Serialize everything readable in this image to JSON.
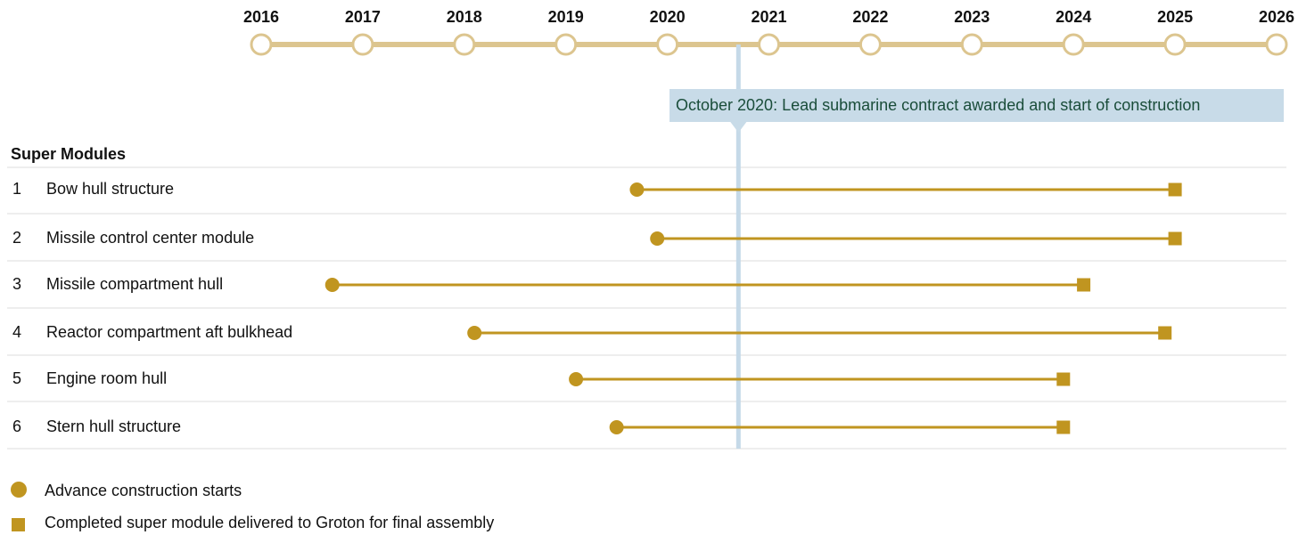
{
  "chart_data": {
    "type": "timeline",
    "xlim": [
      2016,
      2026
    ],
    "xticks": [
      2016,
      2017,
      2018,
      2019,
      2020,
      2021,
      2022,
      2023,
      2024,
      2025,
      2026
    ],
    "section_title": "Super Modules",
    "row_numbers": [
      "1",
      "2",
      "3",
      "4",
      "5",
      "6"
    ],
    "categories": [
      "Bow hull structure",
      "Missile control center module",
      "Missile compartment hull",
      "Reactor compartment aft bulkhead",
      "Engine room hull",
      "Stern hull structure"
    ],
    "series": [
      {
        "name": "Advance construction starts",
        "color": "#c09520",
        "marker": "circle",
        "values": [
          2019.7,
          2019.9,
          2016.7,
          2018.1,
          2019.1,
          2019.5
        ]
      },
      {
        "name": "Completed super module delivered to Groton for final assembly",
        "color": "#c09520",
        "marker": "square",
        "values": [
          2025.0,
          2025.0,
          2024.1,
          2024.9,
          2023.9,
          2023.9
        ]
      }
    ],
    "annotation": {
      "text": "October 2020: Lead submarine contract awarded and start of construction",
      "x": 2020.7
    }
  }
}
